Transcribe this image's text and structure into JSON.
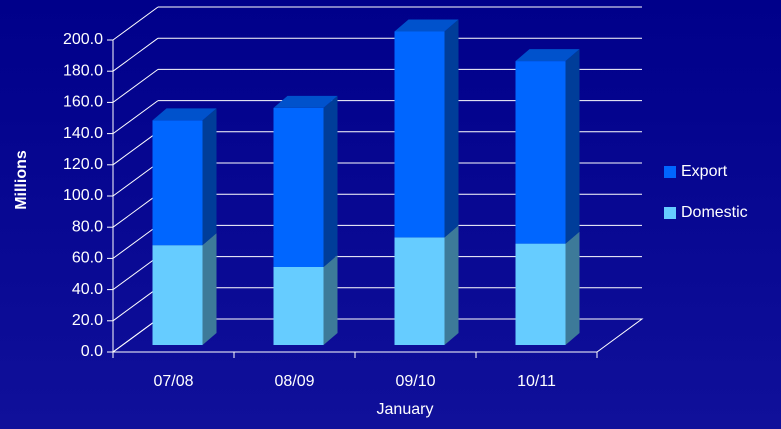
{
  "chart_data": {
    "type": "bar3d_stacked",
    "x_label": "January",
    "y_label": "Millions",
    "categories": [
      "07/08",
      "08/09",
      "09/10",
      "10/11"
    ],
    "series": [
      {
        "name": "Domestic",
        "color": "#66ccff",
        "values": [
          64,
          50,
          69,
          65
        ]
      },
      {
        "name": "Export",
        "color": "#0066ff",
        "values": [
          80,
          102,
          132,
          117
        ]
      }
    ],
    "ylim": [
      0,
      200
    ],
    "yticks": [
      {
        "value": 0,
        "label": "0.0"
      },
      {
        "value": 20,
        "label": "20.0"
      },
      {
        "value": 40,
        "label": "40.0"
      },
      {
        "value": 60,
        "label": "60.0"
      },
      {
        "value": 80,
        "label": "80.0"
      },
      {
        "value": 100,
        "label": "100.0"
      },
      {
        "value": 120,
        "label": "120.0"
      },
      {
        "value": 140,
        "label": "140.0"
      },
      {
        "value": 160,
        "label": "160.0"
      },
      {
        "value": 180,
        "label": "180.0"
      },
      {
        "value": 200,
        "label": "200.0"
      }
    ],
    "grid": true,
    "legend": "right"
  }
}
